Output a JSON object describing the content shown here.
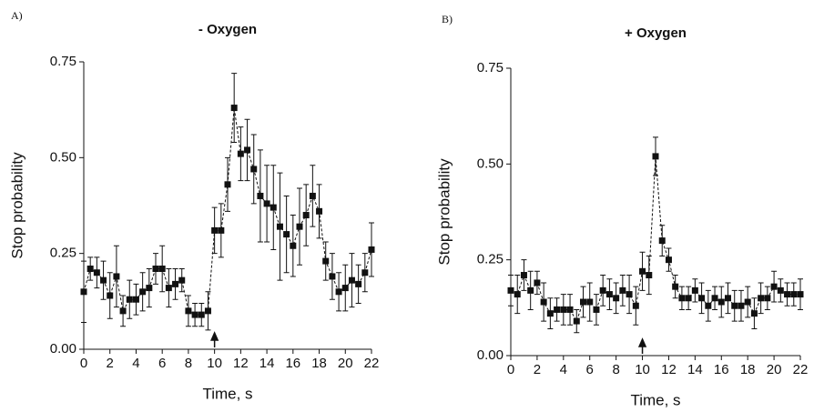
{
  "chart_data": [
    {
      "type": "scatter",
      "panel_label": "A)",
      "title": "- Oxygen",
      "x_label": "Time, s",
      "y_label": "Stop probability",
      "color": "#111111",
      "line_style": "dashed",
      "arrow_x": 10,
      "x": [
        0,
        0.5,
        1,
        1.5,
        2,
        2.5,
        3,
        3.5,
        4,
        4.5,
        5,
        5.5,
        6,
        6.5,
        7,
        7.5,
        8,
        8.5,
        9,
        9.5,
        10,
        10.5,
        11,
        11.5,
        12,
        12.5,
        13,
        13.5,
        14,
        14.5,
        15,
        15.5,
        16,
        16.5,
        17,
        17.5,
        18,
        18.5,
        19,
        19.5,
        20,
        20.5,
        21,
        21.5,
        22
      ],
      "values": [
        0.15,
        0.21,
        0.2,
        0.18,
        0.14,
        0.19,
        0.1,
        0.13,
        0.13,
        0.15,
        0.16,
        0.21,
        0.21,
        0.16,
        0.17,
        0.18,
        0.1,
        0.09,
        0.09,
        0.1,
        0.31,
        0.31,
        0.43,
        0.63,
        0.51,
        0.52,
        0.47,
        0.4,
        0.38,
        0.37,
        0.32,
        0.3,
        0.27,
        0.32,
        0.35,
        0.4,
        0.36,
        0.23,
        0.19,
        0.15,
        0.16,
        0.18,
        0.17,
        0.2,
        0.26
      ],
      "errors": [
        0.08,
        0.03,
        0.04,
        0.05,
        0.06,
        0.08,
        0.04,
        0.05,
        0.04,
        0.05,
        0.05,
        0.04,
        0.06,
        0.05,
        0.04,
        0.03,
        0.04,
        0.03,
        0.03,
        0.05,
        0.06,
        0.07,
        0.07,
        0.09,
        0.07,
        0.08,
        0.09,
        0.12,
        0.1,
        0.11,
        0.14,
        0.1,
        0.08,
        0.1,
        0.08,
        0.08,
        0.07,
        0.05,
        0.06,
        0.05,
        0.06,
        0.07,
        0.05,
        0.05,
        0.07
      ],
      "xlim": [
        0,
        22
      ],
      "ylim": [
        0,
        0.75
      ],
      "xticks": [
        0,
        2,
        4,
        6,
        8,
        10,
        12,
        14,
        16,
        18,
        20,
        22
      ],
      "yticks": [
        {
          "value": 0,
          "label": "0.00"
        },
        {
          "value": 0.25,
          "label": "0.25"
        },
        {
          "value": 0.5,
          "label": "0.50"
        },
        {
          "value": 0.75,
          "label": "0.75"
        }
      ]
    },
    {
      "type": "scatter",
      "panel_label": "B)",
      "title": "+ Oxygen",
      "x_label": "Time, s",
      "y_label": "Stop probability",
      "color": "#111111",
      "line_style": "dashed",
      "arrow_x": 10,
      "x": [
        0,
        0.5,
        1,
        1.5,
        2,
        2.5,
        3,
        3.5,
        4,
        4.5,
        5,
        5.5,
        6,
        6.5,
        7,
        7.5,
        8,
        8.5,
        9,
        9.5,
        10,
        10.5,
        11,
        11.5,
        12,
        12.5,
        13,
        13.5,
        14,
        14.5,
        15,
        15.5,
        16,
        16.5,
        17,
        17.5,
        18,
        18.5,
        19,
        19.5,
        20,
        20.5,
        21,
        21.5,
        22
      ],
      "values": [
        0.17,
        0.16,
        0.21,
        0.17,
        0.19,
        0.14,
        0.11,
        0.12,
        0.12,
        0.12,
        0.09,
        0.14,
        0.14,
        0.12,
        0.17,
        0.16,
        0.15,
        0.17,
        0.16,
        0.13,
        0.22,
        0.21,
        0.52,
        0.3,
        0.25,
        0.18,
        0.15,
        0.15,
        0.17,
        0.15,
        0.13,
        0.15,
        0.14,
        0.15,
        0.13,
        0.13,
        0.14,
        0.11,
        0.15,
        0.15,
        0.18,
        0.17,
        0.16,
        0.16,
        0.16
      ],
      "errors": [
        0.04,
        0.05,
        0.04,
        0.05,
        0.03,
        0.05,
        0.04,
        0.03,
        0.04,
        0.04,
        0.03,
        0.04,
        0.05,
        0.04,
        0.04,
        0.04,
        0.04,
        0.04,
        0.05,
        0.05,
        0.05,
        0.05,
        0.05,
        0.04,
        0.03,
        0.03,
        0.03,
        0.03,
        0.03,
        0.04,
        0.04,
        0.03,
        0.04,
        0.04,
        0.04,
        0.04,
        0.04,
        0.04,
        0.04,
        0.03,
        0.04,
        0.03,
        0.03,
        0.03,
        0.04
      ],
      "xlim": [
        0,
        22
      ],
      "ylim": [
        0,
        0.75
      ],
      "xticks": [
        0,
        2,
        4,
        6,
        8,
        10,
        12,
        14,
        16,
        18,
        20,
        22
      ],
      "yticks": [
        {
          "value": 0,
          "label": "0.00"
        },
        {
          "value": 0.25,
          "label": "0.25"
        },
        {
          "value": 0.5,
          "label": "0.50"
        },
        {
          "value": 0.75,
          "label": "0.75"
        }
      ]
    }
  ]
}
